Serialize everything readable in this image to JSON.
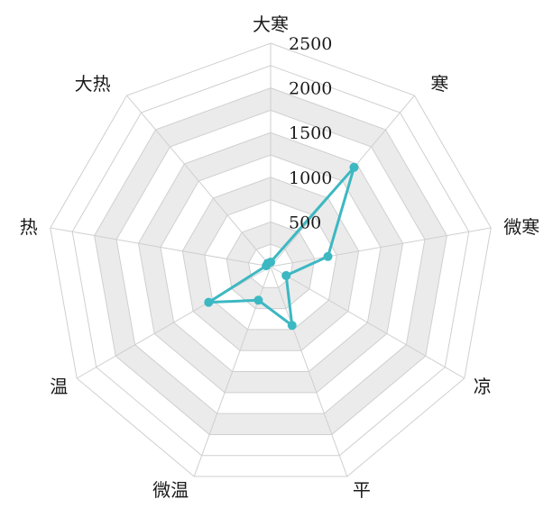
{
  "chart_data": {
    "type": "radar",
    "categories": [
      "大寒",
      "寒",
      "微寒",
      "凉",
      "平",
      "微温",
      "温",
      "热",
      "大热"
    ],
    "series": [
      {
        "values": [
          50,
          1450,
          650,
          200,
          700,
          400,
          800,
          50,
          50
        ]
      }
    ],
    "r_ticks": [
      "500",
      "1000",
      "1500",
      "2000",
      "2500"
    ],
    "r_range": [
      0,
      2500
    ],
    "grid": true,
    "grid_shape": "polygon",
    "band_fill": "#ebebeb",
    "grid_color": "#cfcfcf",
    "series_color": "#3cb8c2"
  }
}
